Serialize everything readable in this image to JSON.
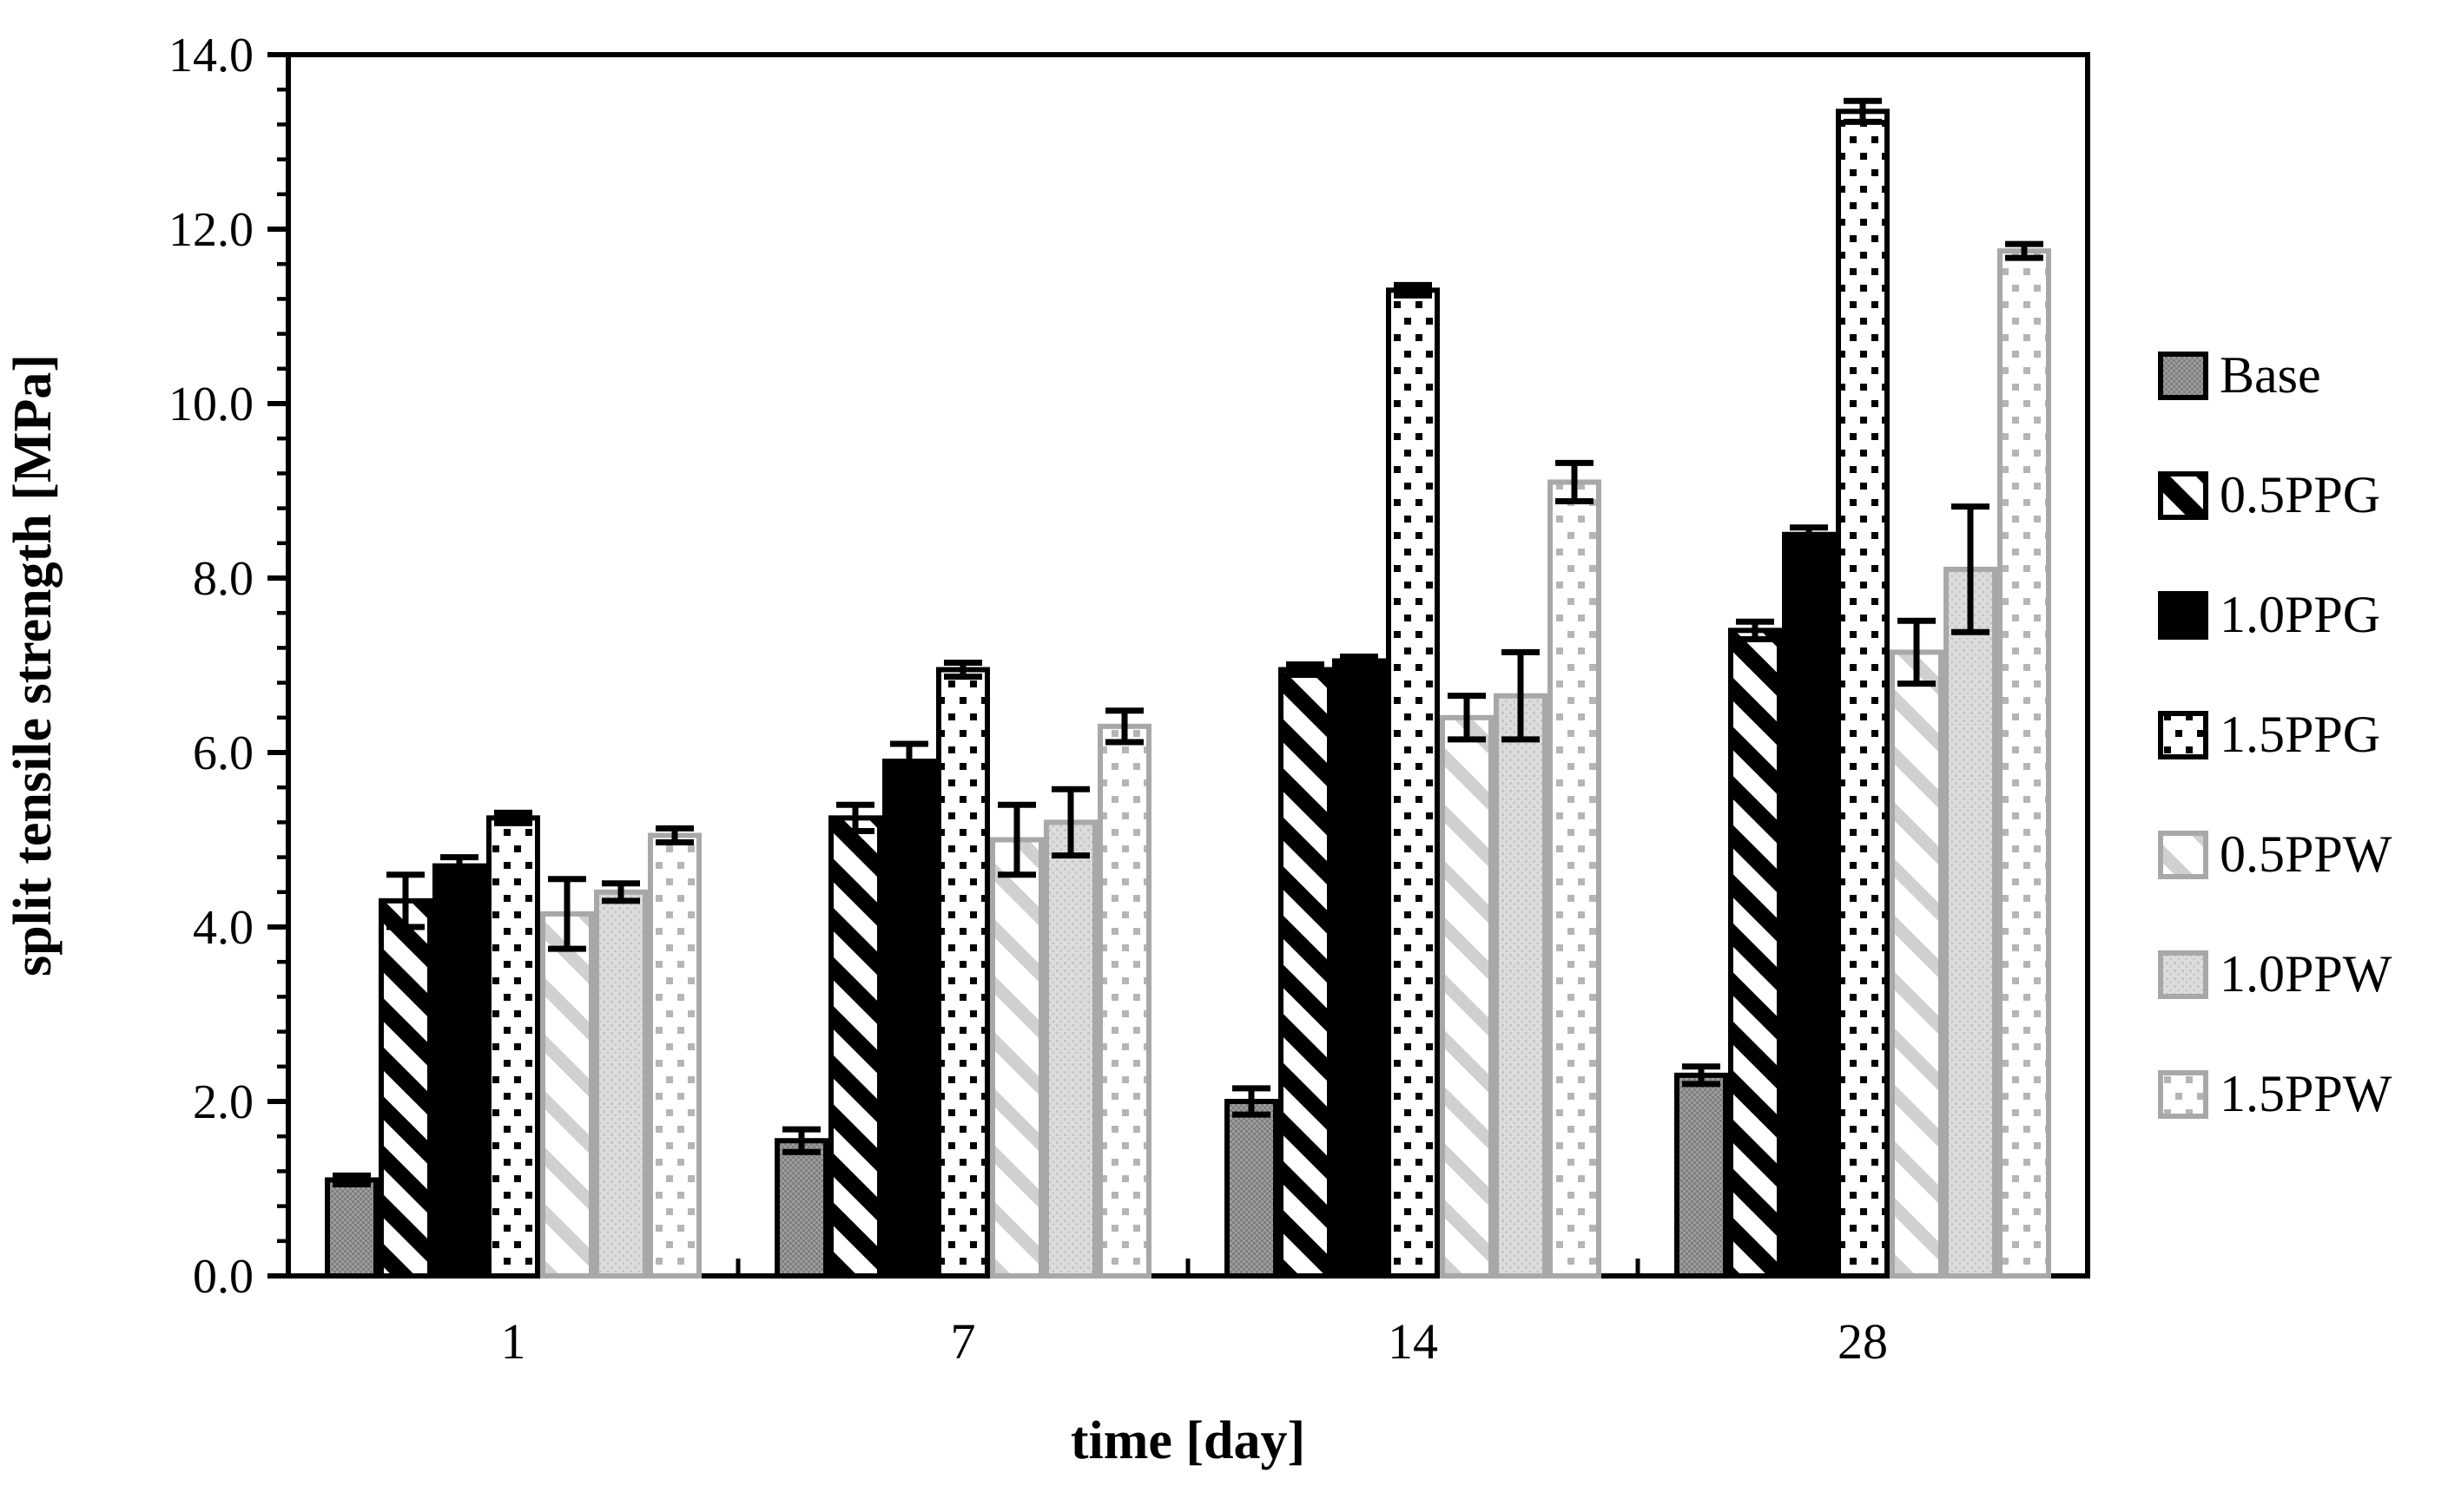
{
  "figure": {
    "background": "#ffffff",
    "text_color": "#000000"
  },
  "chart_data": {
    "type": "bar",
    "title": "",
    "xlabel": "time [day]",
    "ylabel": "split tensile strength [MPa]",
    "categories": [
      "1",
      "7",
      "14",
      "28"
    ],
    "y_axis": {
      "min": 0,
      "max": 14,
      "major_step": 2,
      "minor_step": 0.4,
      "tick_labels": [
        "0.0",
        "2.0",
        "4.0",
        "6.0",
        "8.0",
        "10.0",
        "12.0",
        "14.0"
      ]
    },
    "grid": "off",
    "legend_position": "right",
    "error_bar_color": "#000000",
    "series": [
      {
        "name": "Base",
        "fill_style": "checker",
        "fill": "#9c9c9c",
        "accent": "#7f7f7f",
        "border": "#000000",
        "values": [
          1.1,
          1.55,
          2.0,
          2.3
        ],
        "errors": [
          0.05,
          0.13,
          0.15,
          0.1
        ]
      },
      {
        "name": "0.5PPG",
        "fill_style": "diag",
        "fill": "#ffffff",
        "accent": "#000000",
        "border": "#000000",
        "values": [
          4.3,
          5.25,
          6.95,
          7.4
        ],
        "errors": [
          0.3,
          0.15,
          0.06,
          0.1
        ]
      },
      {
        "name": "1.0PPG",
        "fill_style": "solid",
        "fill": "#000000",
        "accent": "#000000",
        "border": "#000000",
        "values": [
          4.7,
          5.9,
          7.05,
          8.5
        ],
        "errors": [
          0.1,
          0.2,
          0.05,
          0.08
        ]
      },
      {
        "name": "1.5PPG",
        "fill_style": "dots",
        "fill": "#ffffff",
        "accent": "#000000",
        "border": "#000000",
        "values": [
          5.25,
          6.95,
          11.3,
          13.35
        ],
        "errors": [
          0.06,
          0.08,
          0.06,
          0.12
        ]
      },
      {
        "name": "0.5PPW",
        "fill_style": "diag",
        "fill": "#ffffff",
        "accent": "#d0d0d0",
        "border": "#a8a8a8",
        "values": [
          4.15,
          5.0,
          6.4,
          7.15
        ],
        "errors": [
          0.4,
          0.4,
          0.25,
          0.36
        ]
      },
      {
        "name": "1.0PPW",
        "fill_style": "finedots",
        "fill": "#dcdcdc",
        "accent": "#c6c6c6",
        "border": "#a8a8a8",
        "values": [
          4.4,
          5.2,
          6.65,
          8.1
        ],
        "errors": [
          0.1,
          0.38,
          0.5,
          0.72
        ]
      },
      {
        "name": "1.5PPW",
        "fill_style": "dots",
        "fill": "#ffffff",
        "accent": "#b5b5b5",
        "border": "#a8a8a8",
        "values": [
          5.05,
          6.3,
          9.1,
          11.75
        ],
        "errors": [
          0.08,
          0.18,
          0.22,
          0.08
        ]
      }
    ]
  }
}
